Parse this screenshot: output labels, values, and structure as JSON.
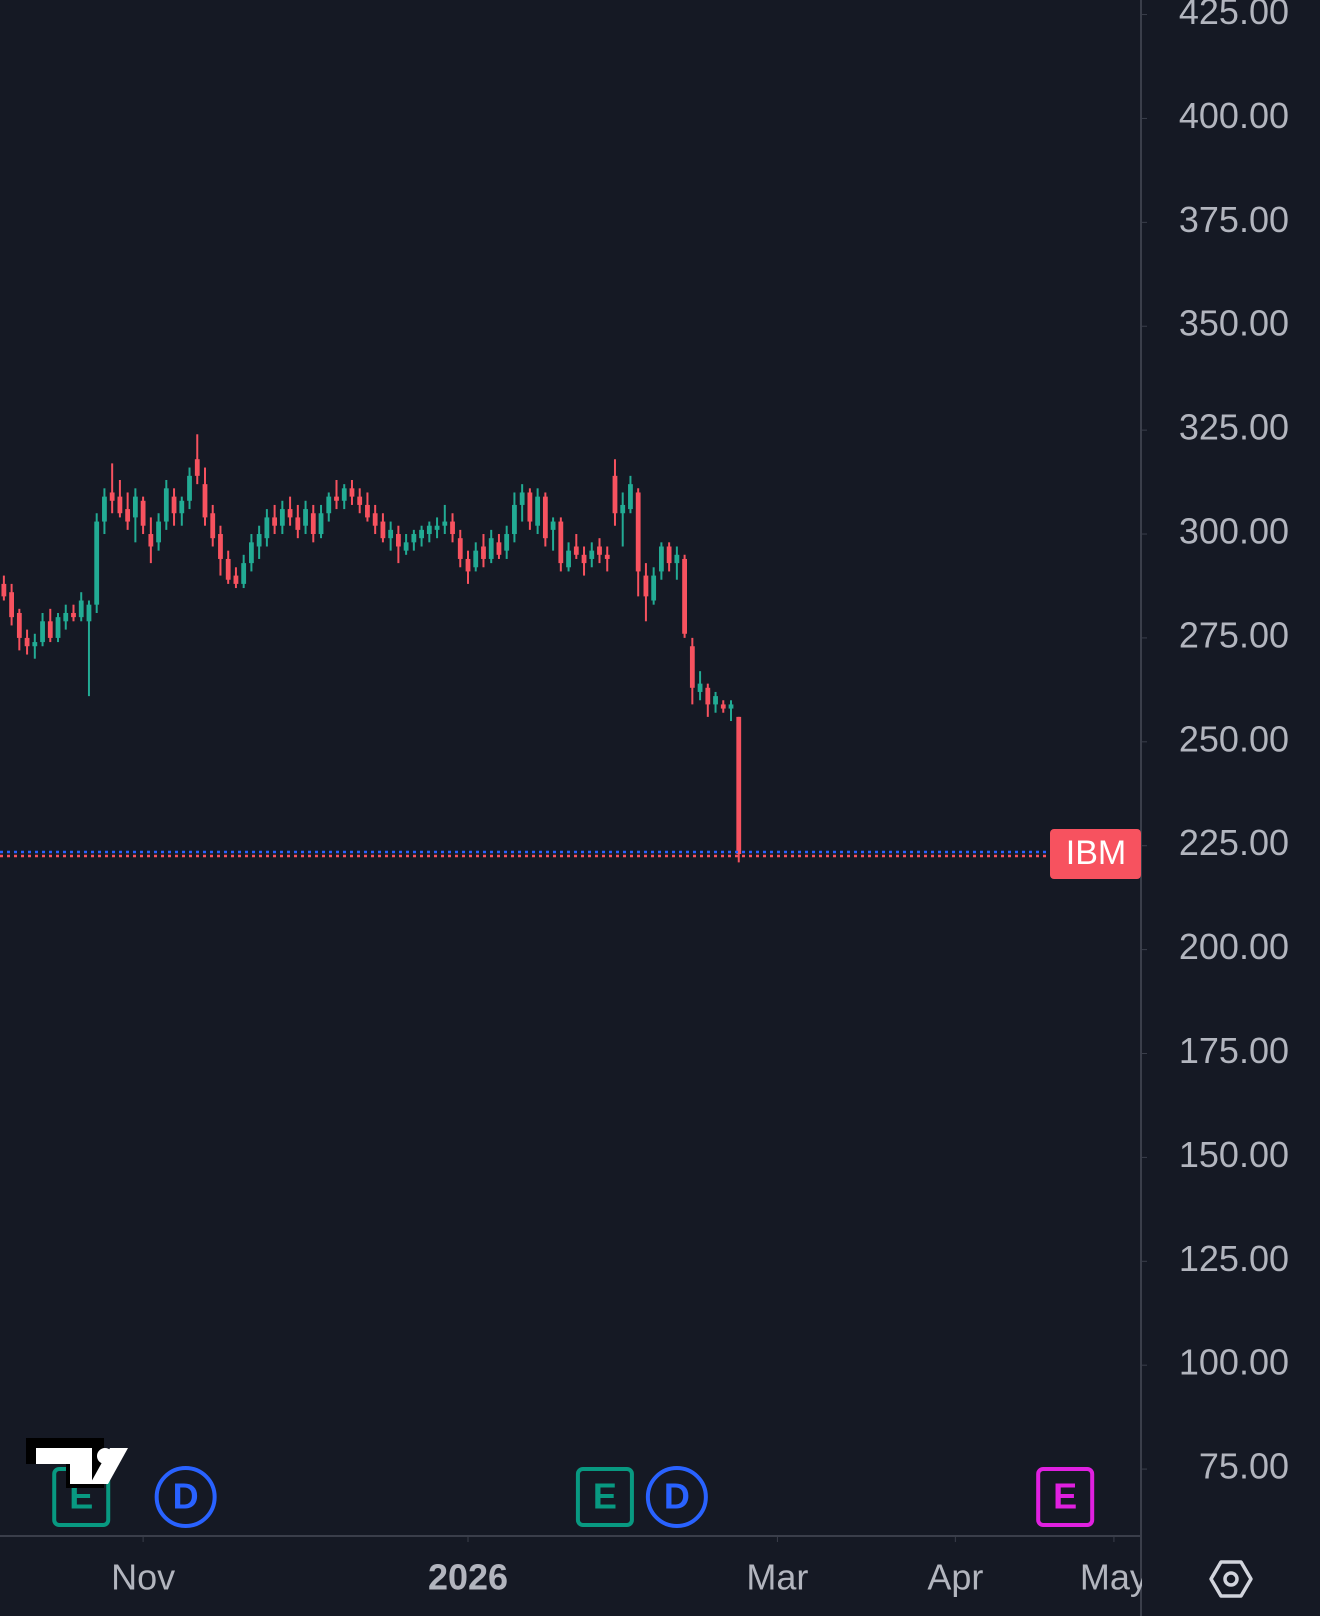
{
  "chart_data": {
    "type": "candlestick",
    "series": [
      {
        "name": "IBM",
        "up_color": "#22ab94",
        "down_color": "#f7525f",
        "open": [
          288,
          286,
          281,
          275,
          273,
          274,
          279,
          275,
          279,
          281,
          280,
          279,
          283,
          303,
          310,
          309,
          306,
          304,
          308,
          300,
          298,
          303,
          309,
          305,
          308,
          318,
          312,
          305,
          300,
          294,
          290,
          288,
          293,
          297,
          299,
          304,
          302,
          306,
          304,
          302,
          305,
          300,
          305,
          309,
          308,
          311,
          309,
          307,
          305,
          303,
          299,
          300,
          296,
          298,
          299,
          300,
          301,
          302,
          303,
          299,
          294,
          292,
          297,
          294,
          298,
          296,
          300,
          307,
          310,
          302,
          309,
          301,
          303,
          292,
          297,
          295,
          294,
          297,
          295,
          314,
          305,
          306,
          310,
          290,
          284,
          291,
          297,
          293,
          294,
          273,
          262,
          263,
          259,
          259,
          258,
          256
        ],
        "high": [
          290,
          288,
          282,
          277,
          276,
          281,
          282,
          281,
          283,
          283,
          286,
          284,
          305,
          311,
          317,
          313,
          310,
          311,
          309,
          304,
          305,
          313,
          311,
          309,
          316,
          324,
          316,
          307,
          302,
          296,
          292,
          295,
          300,
          302,
          306,
          307,
          308,
          309,
          307,
          308,
          307,
          307,
          310,
          313,
          312,
          313,
          311,
          310,
          307,
          305,
          303,
          302,
          300,
          301,
          302,
          303,
          304,
          307,
          305,
          301,
          296,
          298,
          300,
          301,
          300,
          302,
          310,
          312,
          311,
          311,
          310,
          304,
          304,
          298,
          300,
          297,
          298,
          299,
          297,
          318,
          310,
          314,
          311,
          293,
          292,
          298,
          298,
          297,
          295,
          275,
          267,
          264,
          262,
          260,
          260,
          256
        ],
        "low": [
          284,
          278,
          272,
          271,
          270,
          273,
          274,
          274,
          277,
          279,
          279,
          261,
          281,
          300,
          305,
          304,
          301,
          298,
          300,
          293,
          296,
          301,
          302,
          302,
          306,
          312,
          302,
          297,
          290,
          288,
          287,
          287,
          291,
          294,
          297,
          300,
          300,
          302,
          299,
          300,
          298,
          299,
          303,
          306,
          306,
          307,
          305,
          303,
          300,
          298,
          296,
          293,
          295,
          296,
          297,
          298,
          299,
          300,
          298,
          292,
          288,
          291,
          292,
          293,
          294,
          294,
          298,
          303,
          301,
          300,
          297,
          296,
          291,
          291,
          294,
          290,
          292,
          293,
          291,
          302,
          297,
          305,
          285,
          279,
          283,
          289,
          291,
          289,
          275,
          259,
          260,
          256,
          257,
          257,
          255,
          221
        ],
        "close": [
          285,
          280,
          275,
          273,
          274,
          279,
          275,
          280,
          281,
          280,
          284,
          283,
          303,
          309,
          308,
          305,
          303,
          309,
          302,
          297,
          303,
          311,
          305,
          308,
          314,
          314,
          304,
          299,
          294,
          289,
          288,
          293,
          298,
          300,
          304,
          302,
          306,
          304,
          301,
          306,
          300,
          305,
          309,
          308,
          311,
          309,
          307,
          304,
          302,
          299,
          301,
          297,
          298,
          300,
          301,
          302,
          302,
          303,
          300,
          294,
          291,
          296,
          294,
          299,
          295,
          300,
          307,
          310,
          303,
          309,
          299,
          303,
          293,
          296,
          295,
          293,
          296,
          295,
          294,
          305,
          307,
          312,
          291,
          285,
          290,
          297,
          293,
          295,
          276,
          263,
          264,
          259,
          261,
          258,
          259,
          223
        ]
      }
    ],
    "xlim": [
      -0.5,
      147
    ],
    "xticks": [
      {
        "value": 18,
        "label": "Nov"
      },
      {
        "value": 60,
        "label": "2026"
      },
      {
        "value": 100,
        "label": "Mar"
      },
      {
        "value": 123,
        "label": "Apr"
      },
      {
        "value": 143.5,
        "label": "May"
      }
    ],
    "ylim": [
      58.9,
      428.5
    ],
    "yticks": [
      {
        "value": 75,
        "label": "75.00"
      },
      {
        "value": 100,
        "label": "100.00"
      },
      {
        "value": 125,
        "label": "125.00"
      },
      {
        "value": 150,
        "label": "150.00"
      },
      {
        "value": 175,
        "label": "175.00"
      },
      {
        "value": 200,
        "label": "200.00"
      },
      {
        "value": 225,
        "label": "225.00"
      },
      {
        "value": 250,
        "label": "250.00"
      },
      {
        "value": 275,
        "label": "275.00"
      },
      {
        "value": 300,
        "label": "300.00"
      },
      {
        "value": 325,
        "label": "325.00"
      },
      {
        "value": 350,
        "label": "350.00"
      },
      {
        "value": 375,
        "label": "375.00"
      },
      {
        "value": 400,
        "label": "400.00"
      },
      {
        "value": 425,
        "label": "425.00"
      }
    ],
    "events": [
      {
        "label": "E",
        "x": 10,
        "color": "#089981"
      },
      {
        "label": "D",
        "x": 23.5,
        "color": "#2962ff"
      },
      {
        "label": "E",
        "x": 77.7,
        "color": "#089981"
      },
      {
        "label": "D",
        "x": 87,
        "color": "#2962ff"
      },
      {
        "label": "E",
        "x": 137.2,
        "color": "#e020e0"
      }
    ]
  }
}
